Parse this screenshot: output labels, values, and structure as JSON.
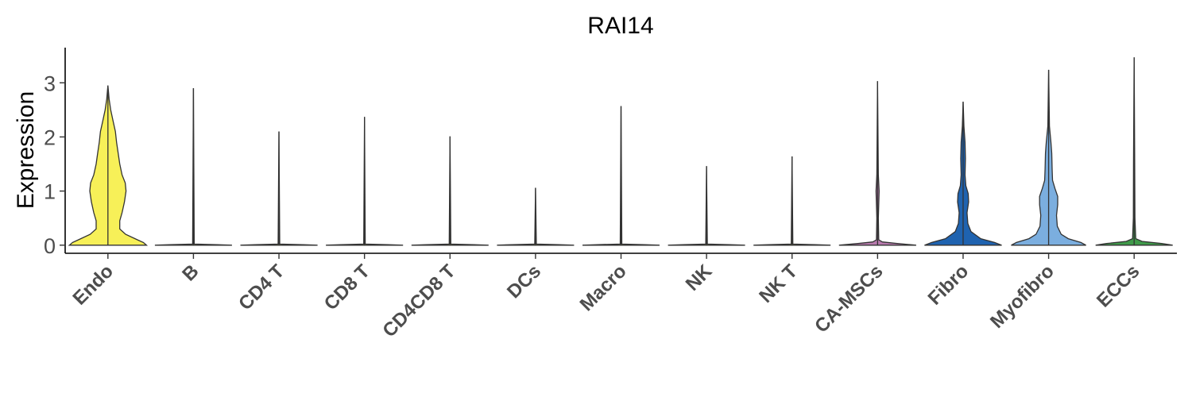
{
  "chart_data": {
    "type": "violin",
    "title": "RAI14",
    "ylabel": "Expression",
    "xlabel": "",
    "ylim": [
      -0.15,
      3.65
    ],
    "yticks": [
      0,
      1,
      2,
      3
    ],
    "grid": false,
    "legend": "none",
    "categories": [
      "Endo",
      "B",
      "CD4 T",
      "CD8 T",
      "CD4CD8 T",
      "DCs",
      "Macro",
      "NK",
      "NK T",
      "CA-MSCs",
      "Fibro",
      "Myofibro",
      "ECCs"
    ],
    "colors": [
      "#F7F058",
      "#F7F058",
      "#F7F058",
      "#F7F058",
      "#F7F058",
      "#F7F058",
      "#F7F058",
      "#F7F058",
      "#F7F058",
      "#B87AAE",
      "#1F63B0",
      "#7BAEDF",
      "#3F9A4A"
    ],
    "max_values": [
      2.95,
      2.9,
      2.1,
      2.37,
      2.01,
      1.06,
      2.57,
      1.46,
      1.64,
      3.03,
      2.65,
      3.24,
      3.47
    ],
    "density_profiles": [
      [
        [
          0,
          0.98
        ],
        [
          0.05,
          0.9
        ],
        [
          0.1,
          0.75
        ],
        [
          0.2,
          0.45
        ],
        [
          0.3,
          0.3
        ],
        [
          0.45,
          0.3
        ],
        [
          0.6,
          0.36
        ],
        [
          0.8,
          0.42
        ],
        [
          1.0,
          0.46
        ],
        [
          1.15,
          0.44
        ],
        [
          1.3,
          0.36
        ],
        [
          1.5,
          0.3
        ],
        [
          1.7,
          0.26
        ],
        [
          1.9,
          0.22
        ],
        [
          2.1,
          0.19
        ],
        [
          2.3,
          0.13
        ],
        [
          2.5,
          0.07
        ],
        [
          2.7,
          0.03
        ],
        [
          2.95,
          0
        ]
      ],
      [
        [
          0,
          0.98
        ],
        [
          0.01,
          0.6
        ],
        [
          0.02,
          0.02
        ],
        [
          2.9,
          0
        ]
      ],
      [
        [
          0,
          0.98
        ],
        [
          0.01,
          0.6
        ],
        [
          0.02,
          0.02
        ],
        [
          2.1,
          0
        ]
      ],
      [
        [
          0,
          0.98
        ],
        [
          0.01,
          0.6
        ],
        [
          0.02,
          0.02
        ],
        [
          2.37,
          0
        ]
      ],
      [
        [
          0,
          0.98
        ],
        [
          0.01,
          0.6
        ],
        [
          0.02,
          0.02
        ],
        [
          2.01,
          0
        ]
      ],
      [
        [
          0,
          0.98
        ],
        [
          0.01,
          0.6
        ],
        [
          0.02,
          0.02
        ],
        [
          1.06,
          0
        ]
      ],
      [
        [
          0,
          0.98
        ],
        [
          0.01,
          0.6
        ],
        [
          0.02,
          0.02
        ],
        [
          2.57,
          0
        ]
      ],
      [
        [
          0,
          0.98
        ],
        [
          0.01,
          0.6
        ],
        [
          0.02,
          0.02
        ],
        [
          1.46,
          0
        ]
      ],
      [
        [
          0,
          0.98
        ],
        [
          0.01,
          0.6
        ],
        [
          0.02,
          0.02
        ],
        [
          1.64,
          0
        ]
      ],
      [
        [
          0,
          0.98
        ],
        [
          0.03,
          0.5
        ],
        [
          0.06,
          0.12
        ],
        [
          0.1,
          0.03
        ],
        [
          0.5,
          0.02
        ],
        [
          1.0,
          0.04
        ],
        [
          1.3,
          0.02
        ],
        [
          3.03,
          0
        ]
      ],
      [
        [
          0,
          0.98
        ],
        [
          0.05,
          0.8
        ],
        [
          0.12,
          0.45
        ],
        [
          0.25,
          0.2
        ],
        [
          0.4,
          0.12
        ],
        [
          0.6,
          0.1
        ],
        [
          0.8,
          0.14
        ],
        [
          0.95,
          0.13
        ],
        [
          1.1,
          0.07
        ],
        [
          1.3,
          0.05
        ],
        [
          1.6,
          0.06
        ],
        [
          1.9,
          0.05
        ],
        [
          2.2,
          0.02
        ],
        [
          2.65,
          0
        ]
      ],
      [
        [
          0,
          0.95
        ],
        [
          0.05,
          0.82
        ],
        [
          0.12,
          0.5
        ],
        [
          0.2,
          0.32
        ],
        [
          0.35,
          0.22
        ],
        [
          0.55,
          0.2
        ],
        [
          0.75,
          0.23
        ],
        [
          0.9,
          0.23
        ],
        [
          1.05,
          0.16
        ],
        [
          1.2,
          0.1
        ],
        [
          1.4,
          0.09
        ],
        [
          1.7,
          0.08
        ],
        [
          1.9,
          0.06
        ],
        [
          2.2,
          0.02
        ],
        [
          3.24,
          0
        ]
      ],
      [
        [
          0,
          0.98
        ],
        [
          0.03,
          0.7
        ],
        [
          0.07,
          0.2
        ],
        [
          0.12,
          0.04
        ],
        [
          0.5,
          0.02
        ],
        [
          1.5,
          0.015
        ],
        [
          3.47,
          0
        ]
      ]
    ]
  }
}
